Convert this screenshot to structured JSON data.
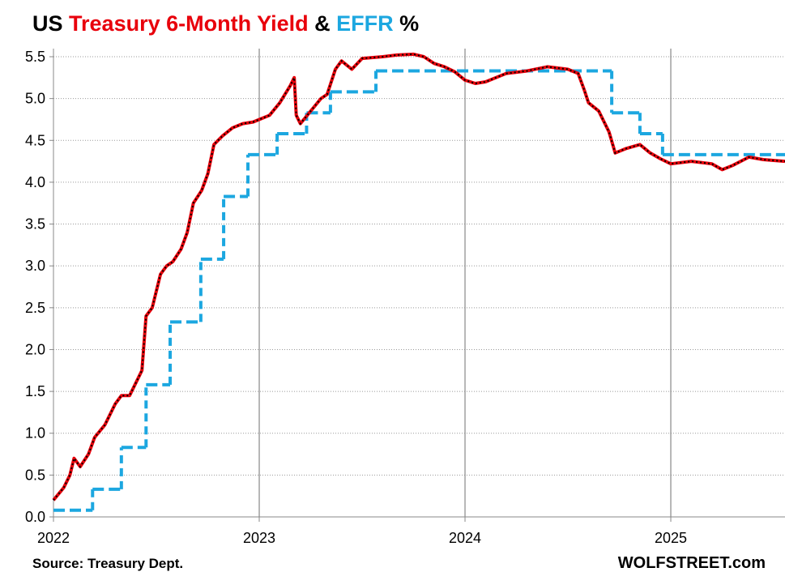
{
  "chart_data": {
    "type": "line",
    "title_parts": [
      {
        "text": "US",
        "color": "#000000"
      },
      {
        "text": "Treasury 6-Month Yield",
        "color": "#e8000b"
      },
      {
        "text": "&",
        "color": "#000000"
      },
      {
        "text": "EFFR",
        "color": "#1ca7e0"
      },
      {
        "text": "%",
        "color": "#000000"
      }
    ],
    "source": "Source: Treasury Dept.",
    "credit": "WOLFSTREET.com",
    "xlim": [
      2022,
      2025.555
    ],
    "xticks": [
      2022,
      2023,
      2024,
      2025
    ],
    "ylim": [
      0,
      5.5
    ],
    "yticks": [
      {
        "value": 0,
        "label": "0.0"
      },
      0.5,
      {
        "value": 1,
        "label": "1.0"
      },
      1.5,
      {
        "value": 2,
        "label": "2.0"
      },
      2.5,
      {
        "value": 3,
        "label": "3.0"
      },
      3.5,
      {
        "value": 4,
        "label": "4.0"
      },
      4.5,
      {
        "value": 5,
        "label": "5.0"
      },
      5.5
    ],
    "grid": true,
    "series": [
      {
        "name": "Treasury 6-Month Yield",
        "color": "#e8000b",
        "style": "line",
        "x": [
          2022.0,
          2022.05,
          2022.08,
          2022.1,
          2022.13,
          2022.17,
          2022.2,
          2022.25,
          2022.3,
          2022.33,
          2022.37,
          2022.4,
          2022.43,
          2022.45,
          2022.48,
          2022.52,
          2022.55,
          2022.58,
          2022.62,
          2022.65,
          2022.68,
          2022.72,
          2022.75,
          2022.78,
          2022.82,
          2022.87,
          2022.92,
          2022.97,
          2023.0,
          2023.05,
          2023.1,
          2023.15,
          2023.17,
          2023.18,
          2023.2,
          2023.25,
          2023.3,
          2023.33,
          2023.37,
          2023.4,
          2023.45,
          2023.5,
          2023.6,
          2023.67,
          2023.75,
          2023.8,
          2023.85,
          2023.9,
          2023.95,
          2024.0,
          2024.05,
          2024.1,
          2024.2,
          2024.3,
          2024.4,
          2024.5,
          2024.55,
          2024.58,
          2024.6,
          2024.65,
          2024.7,
          2024.73,
          2024.78,
          2024.85,
          2024.9,
          2024.95,
          2025.0,
          2025.1,
          2025.2,
          2025.25,
          2025.3,
          2025.38,
          2025.45,
          2025.555
        ],
        "values": [
          0.2,
          0.35,
          0.5,
          0.7,
          0.6,
          0.75,
          0.95,
          1.1,
          1.35,
          1.45,
          1.45,
          1.6,
          1.75,
          2.4,
          2.5,
          2.9,
          3.0,
          3.05,
          3.2,
          3.4,
          3.75,
          3.9,
          4.1,
          4.45,
          4.55,
          4.65,
          4.7,
          4.72,
          4.75,
          4.8,
          4.95,
          5.15,
          5.25,
          4.8,
          4.7,
          4.85,
          5.0,
          5.05,
          5.35,
          5.45,
          5.35,
          5.48,
          5.5,
          5.52,
          5.53,
          5.5,
          5.42,
          5.38,
          5.32,
          5.22,
          5.18,
          5.2,
          5.3,
          5.33,
          5.38,
          5.35,
          5.3,
          5.1,
          4.95,
          4.85,
          4.6,
          4.35,
          4.4,
          4.45,
          4.35,
          4.28,
          4.22,
          4.25,
          4.22,
          4.15,
          4.2,
          4.3,
          4.27,
          4.25
        ]
      },
      {
        "name": "EFFR",
        "color": "#1ca7e0",
        "style": "step",
        "x": [
          2022.0,
          2022.19,
          2022.33,
          2022.45,
          2022.567,
          2022.716,
          2022.827,
          2022.945,
          2023.087,
          2023.23,
          2023.346,
          2023.567,
          2024.713,
          2024.85,
          2024.96
        ],
        "values": [
          0.08,
          0.33,
          0.83,
          1.58,
          2.33,
          3.08,
          3.83,
          4.33,
          4.58,
          4.83,
          5.08,
          5.33,
          4.83,
          4.58,
          4.33
        ]
      }
    ]
  }
}
